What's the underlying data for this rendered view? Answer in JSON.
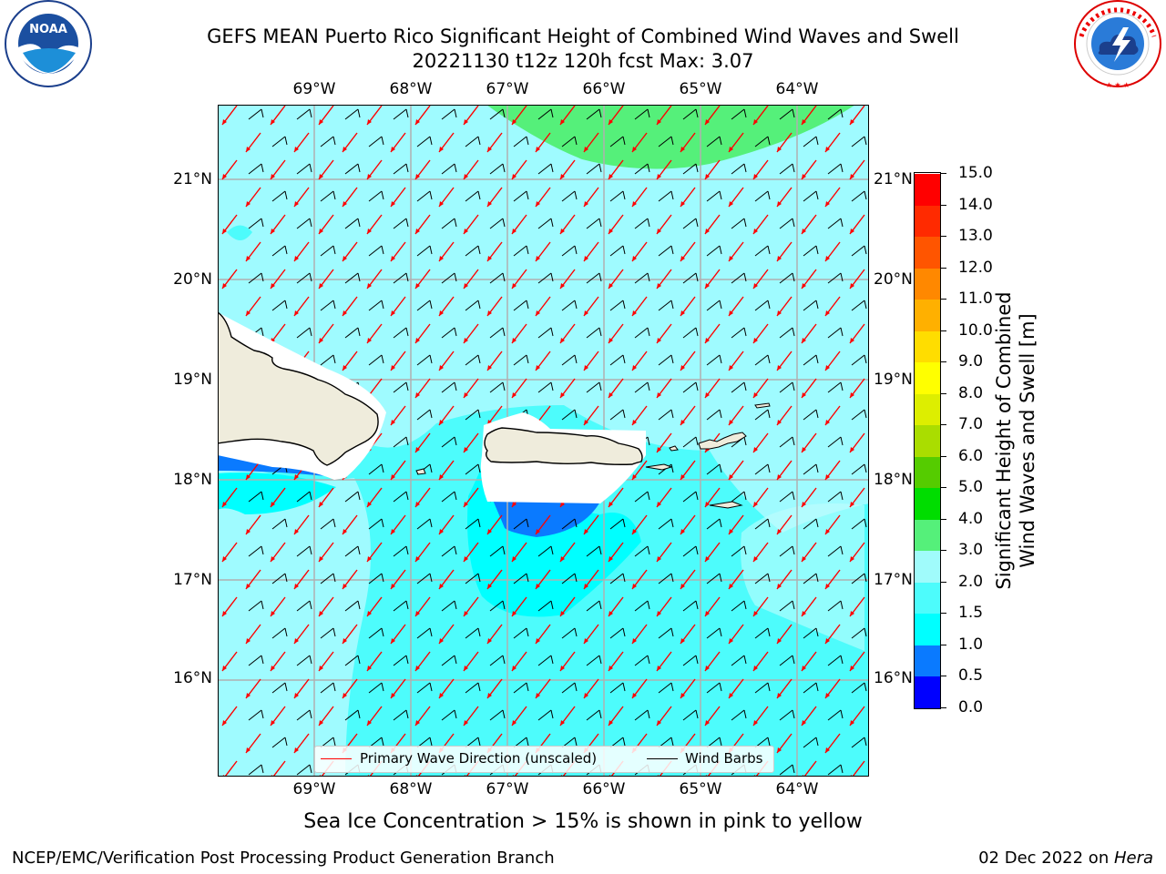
{
  "title": {
    "line1": "GEFS MEAN Puerto Rico Significant Height of Combined Wind Waves and Swell",
    "line2": "20221130 t12z 120h fcst   Max: 3.07"
  },
  "logos": {
    "noaa_text": "NOAA",
    "noaa_ring": "NATIONAL OCEANIC AND ATMOSPHERIC ADMINISTRATION · U.S. DEPARTMENT OF COMMERCE",
    "nws_ring": "NATIONAL WEATHER SERVICE"
  },
  "axes": {
    "lon_labels": [
      "69°W",
      "68°W",
      "67°W",
      "66°W",
      "65°W",
      "64°W"
    ],
    "lat_labels": [
      "21°N",
      "20°N",
      "19°N",
      "18°N",
      "17°N",
      "16°N"
    ]
  },
  "legend": {
    "primary_wave": "Primary Wave Direction (unscaled)",
    "wind_barbs": "Wind Barbs"
  },
  "colorbar": {
    "title_line1": "Significant Height of Combined",
    "title_line2": "Wind Waves and Swell [m]",
    "tick_labels": [
      "0.0",
      "0.5",
      "1.0",
      "1.5",
      "2.0",
      "3.0",
      "4.0",
      "5.0",
      "6.0",
      "7.0",
      "8.0",
      "9.0",
      "10.0",
      "11.0",
      "12.0",
      "13.0",
      "14.0",
      "15.0"
    ],
    "colors": [
      "#0000ff",
      "#0a7aff",
      "#00ffff",
      "#4dfcfc",
      "#a0fbfb",
      "#55f07a",
      "#00dd00",
      "#55cc00",
      "#aadd00",
      "#ddee00",
      "#ffff00",
      "#ffdd00",
      "#ffb000",
      "#ff8800",
      "#ff5500",
      "#ff2a00",
      "#ff0000"
    ]
  },
  "colors": {
    "ocean_base": "#9ffbff",
    "wave_mid": "#4dfcfc",
    "wave_low": "#00ffff",
    "wave_calm": "#0a7aff",
    "wave_high": "#55f07a",
    "land": "#efecdc",
    "wave_arrow": "#ff0000",
    "wind_barb": "#000000"
  },
  "annotation": "Sea Ice Concentration > 15% is shown in pink to yellow",
  "footer": {
    "left": "NCEP/EMC/Verification Post Processing Product Generation Branch",
    "right_date": "02 Dec 2022 on ",
    "right_host": "Hera"
  }
}
